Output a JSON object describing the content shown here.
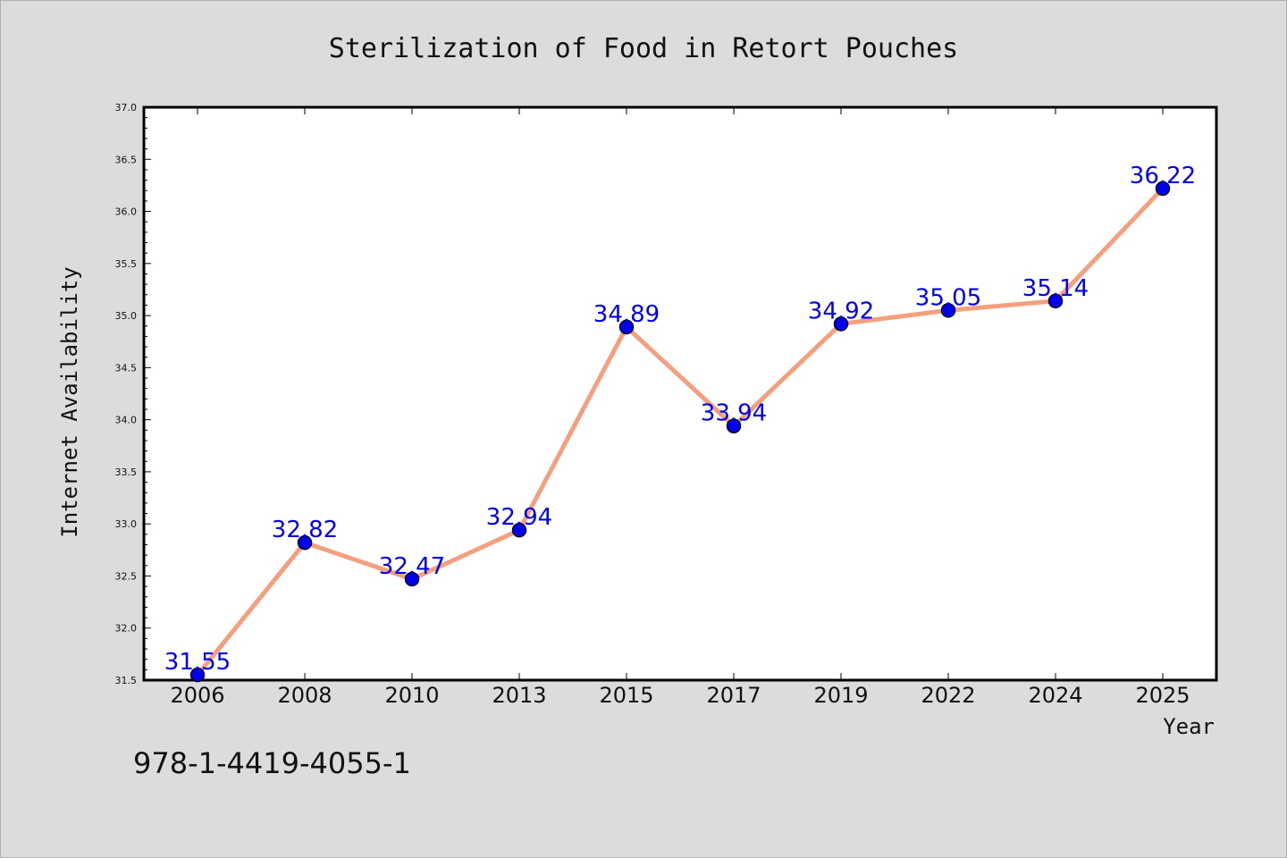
{
  "chart_data": {
    "type": "line",
    "title": "Sterilization of Food in Retort Pouches",
    "xlabel": "Year",
    "ylabel": "Internet Availability",
    "categories": [
      "2006",
      "2008",
      "2010",
      "2013",
      "2015",
      "2017",
      "2019",
      "2022",
      "2024",
      "2025"
    ],
    "series": [
      {
        "values": [
          31.55,
          32.82,
          32.47,
          32.94,
          34.89,
          33.94,
          34.92,
          35.05,
          35.14,
          36.22
        ],
        "value_labels": [
          "31.55",
          "32.82",
          "32.47",
          "32.94",
          "34.89",
          "33.94",
          "34.92",
          "35.05",
          "35.14",
          "36.22"
        ]
      }
    ],
    "ylim": [
      31.5,
      37.0
    ],
    "yticks": [
      "31.5",
      "32.0",
      "32.5",
      "33.0",
      "33.5",
      "34.0",
      "34.5",
      "35.0",
      "35.5",
      "36.0",
      "36.5",
      "37.0"
    ],
    "grid": false,
    "colors": {
      "line": "#f4a07e",
      "marker": "#0000ee",
      "data_label": "#0000ee",
      "background": "#dcdcdc",
      "plot_background": "#ffffff"
    }
  },
  "annotation": "978-1-4419-4055-1"
}
